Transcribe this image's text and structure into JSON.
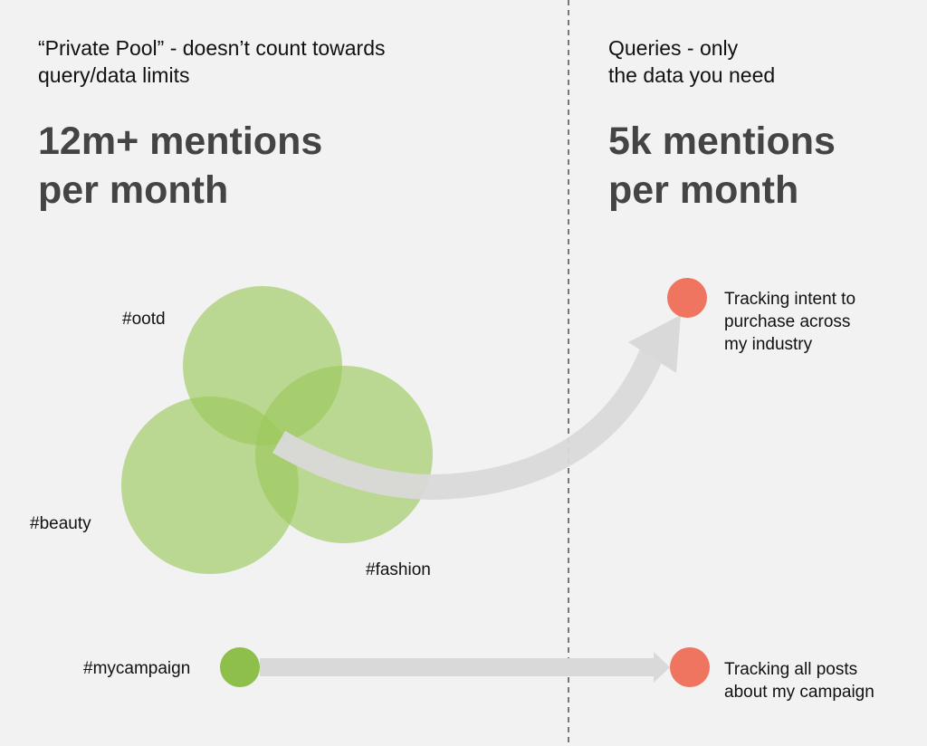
{
  "left": {
    "heading": [
      "“Private Pool” - doesn’t count towards",
      "query/data limits"
    ],
    "stat": [
      "12m+ mentions",
      "per month"
    ]
  },
  "right": {
    "heading": [
      "Queries - only",
      "the data you need"
    ],
    "stat": [
      "5k mentions",
      "per month"
    ]
  },
  "nodes": [
    {
      "label": "#ootd"
    },
    {
      "label": "#beauty"
    },
    {
      "label": "#fashion"
    },
    {
      "label": "#mycampaign"
    }
  ],
  "outcomes": [
    {
      "label": [
        "Tracking intent to",
        "purchase across",
        "my industry"
      ]
    },
    {
      "label": [
        "Tracking all posts",
        "about my campaign"
      ]
    }
  ]
}
